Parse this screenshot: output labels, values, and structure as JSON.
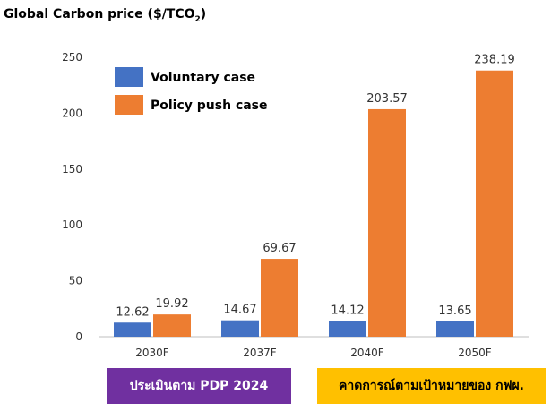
{
  "title": {
    "main": "Global Carbon price ($/TCO",
    "sub": "2",
    "end": ")"
  },
  "colors": {
    "voluntary": "#4472c4",
    "policy": "#ed7d31",
    "axis": "#bfbfbf",
    "purple": "#7030a0",
    "yellow": "#ffc000"
  },
  "chart_data": {
    "type": "bar",
    "title": "Global Carbon price ($/TCO2)",
    "categories": [
      "2030F",
      "2037F",
      "2040F",
      "2050F"
    ],
    "series": [
      {
        "name": "Voluntary case",
        "values": [
          12.62,
          14.67,
          14.12,
          13.65
        ]
      },
      {
        "name": "Policy push case",
        "values": [
          19.92,
          69.67,
          203.57,
          238.19
        ]
      }
    ],
    "ylim": [
      0,
      250
    ],
    "yticks": [
      0,
      50,
      100,
      150,
      200,
      250
    ],
    "grid": false,
    "legend": "top-left"
  },
  "badges": {
    "pdp": "ประเมินตาม PDP 2024",
    "egat": "คาดการณ์ตามเป้าหมายของ กฟผ."
  }
}
